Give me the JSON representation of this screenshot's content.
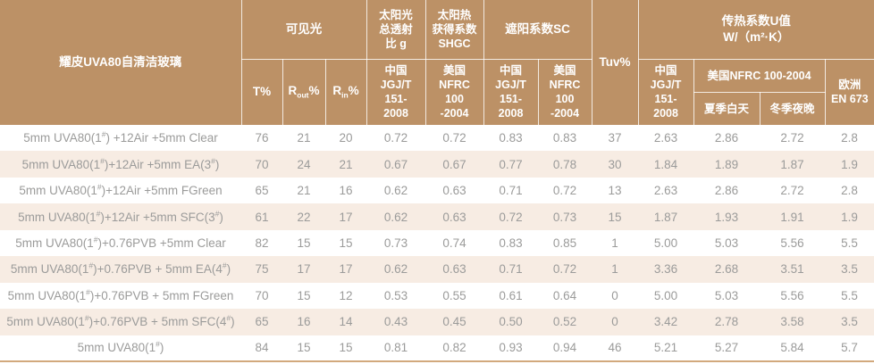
{
  "table": {
    "header": {
      "product": "耀皮UVA80自清洁玻璃",
      "groups": {
        "visible": "可见光",
        "solar_g": "太阳光\n总透射\n比 g",
        "shgc": "太阳热\n获得系数\nSHGC",
        "sc": "遮阳系数SC",
        "tuv": "Tuv%",
        "u_value": "传热系数U值\nW/（m²·K）"
      },
      "sub": {
        "t": "T%",
        "r_out": {
          "base": "R",
          "sub": "out",
          "suffix": "%"
        },
        "r_in": {
          "base": "R",
          "sub": "in",
          "suffix": "%"
        },
        "g_china": "中国\nJGJ/T\n151-\n2008",
        "shgc_us": "美国\nNFRC\n100\n-2004",
        "sc_china": "中国\nJGJ/T\n151-\n2008",
        "sc_us": "美国\nNFRC\n100\n-2004",
        "u_china": "中国\nJGJ/T\n151-\n2008",
        "u_us": "美国NFRC 100-2004",
        "u_us_summer": "夏季白天",
        "u_us_winter": "冬季夜晚",
        "europe": "欧洲\nEN 673"
      }
    }
  },
  "colors": {
    "header_bg": "#BC9166",
    "header_text": "#FFFFFF",
    "alt_row_bg": "#F7ECE3",
    "data_text": "#9B9B9A",
    "bottom_border": "#D2A97D"
  },
  "chart_data": {
    "type": "table",
    "title": "耀皮UVA80自清洁玻璃",
    "columns": [
      "耀皮UVA80自清洁玻璃",
      "可见光 T%",
      "可见光 Rout%",
      "可见光 Rin%",
      "太阳光总透射比g 中国JGJ/T 151-2008",
      "太阳热获得系数SHGC 美国NFRC 100-2004",
      "遮阳系数SC 中国JGJ/T 151-2008",
      "遮阳系数SC 美国NFRC 100-2004",
      "Tuv%",
      "传热系数U值 中国JGJ/T 151-2008",
      "传热系数U值 美国NFRC 100-2004 夏季白天",
      "传热系数U值 美国NFRC 100-2004 冬季夜晚",
      "传热系数U值 欧洲EN 673"
    ],
    "rows": [
      {
        "name": "5mm UVA80(1#) +12Air +5mm Clear",
        "values": [
          "76",
          "21",
          "20",
          "0.72",
          "0.72",
          "0.83",
          "0.83",
          "37",
          "2.63",
          "2.86",
          "2.72",
          "2.8"
        ]
      },
      {
        "name": "5mm UVA80(1#)+12Air +5mm EA(3#)",
        "values": [
          "70",
          "24",
          "21",
          "0.67",
          "0.67",
          "0.77",
          "0.78",
          "30",
          "1.84",
          "1.89",
          "1.87",
          "1.9"
        ]
      },
      {
        "name": "5mm UVA80(1#)+12Air +5mm FGreen",
        "values": [
          "65",
          "21",
          "16",
          "0.62",
          "0.63",
          "0.71",
          "0.72",
          "13",
          "2.63",
          "2.86",
          "2.72",
          "2.8"
        ]
      },
      {
        "name": "5mm UVA80(1#)+12Air +5mm SFC(3#)",
        "values": [
          "61",
          "22",
          "17",
          "0.62",
          "0.63",
          "0.72",
          "0.73",
          "15",
          "1.87",
          "1.93",
          "1.91",
          "1.9"
        ]
      },
      {
        "name": "5mm UVA80(1#)+0.76PVB +5mm Clear",
        "values": [
          "82",
          "15",
          "15",
          "0.73",
          "0.74",
          "0.83",
          "0.85",
          "1",
          "5.00",
          "5.03",
          "5.56",
          "5.5"
        ]
      },
      {
        "name": "5mm UVA80(1#)+0.76PVB + 5mm EA(4#)",
        "values": [
          "75",
          "17",
          "17",
          "0.62",
          "0.63",
          "0.71",
          "0.72",
          "1",
          "3.36",
          "2.68",
          "3.51",
          "3.5"
        ]
      },
      {
        "name": "5mm UVA80(1#)+0.76PVB + 5mm FGreen",
        "values": [
          "70",
          "15",
          "12",
          "0.53",
          "0.55",
          "0.61",
          "0.64",
          "0",
          "5.00",
          "5.03",
          "5.56",
          "5.5"
        ]
      },
      {
        "name": "5mm UVA80(1#)+0.76PVB + 5mm SFC(4#)",
        "values": [
          "65",
          "16",
          "14",
          "0.43",
          "0.45",
          "0.50",
          "0.52",
          "0",
          "3.42",
          "2.78",
          "3.58",
          "3.5"
        ]
      },
      {
        "name": "5mm UVA80(1#)",
        "values": [
          "84",
          "15",
          "15",
          "0.81",
          "0.82",
          "0.93",
          "0.94",
          "46",
          "5.21",
          "5.27",
          "5.84",
          "5.7"
        ]
      }
    ]
  }
}
